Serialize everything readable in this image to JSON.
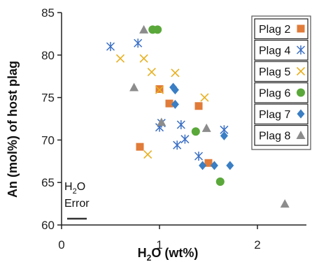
{
  "chart_data": {
    "type": "scatter",
    "title": "",
    "xlabel": "H2O (wt%)",
    "xlabel_main": "H",
    "xlabel_sub": "2",
    "xlabel_rest": "O (wt%)",
    "ylabel": "An (mol%) of host plag",
    "xlim": [
      0,
      2.5
    ],
    "ylim": [
      60,
      85
    ],
    "xticks": [
      0,
      1,
      2
    ],
    "yticks": [
      60,
      65,
      70,
      75,
      80,
      85
    ],
    "legend_position": "top-right",
    "series": [
      {
        "name": "Plag 2",
        "marker": "square",
        "color": "#e07b39",
        "points": [
          [
            0.8,
            69.2
          ],
          [
            1.0,
            76.0
          ],
          [
            1.1,
            74.3
          ],
          [
            1.4,
            74.0
          ],
          [
            1.5,
            67.3
          ]
        ]
      },
      {
        "name": "Plag 4",
        "marker": "star",
        "color": "#3a6fc4",
        "points": [
          [
            0.5,
            81.0
          ],
          [
            0.78,
            81.4
          ],
          [
            1.0,
            71.5
          ],
          [
            1.02,
            72.0
          ],
          [
            1.18,
            69.4
          ],
          [
            1.22,
            71.8
          ],
          [
            1.26,
            70.1
          ],
          [
            1.4,
            68.1
          ],
          [
            1.66,
            71.2
          ]
        ]
      },
      {
        "name": "Plag 5",
        "marker": "x",
        "color": "#e8b020",
        "points": [
          [
            0.6,
            79.6
          ],
          [
            0.84,
            79.6
          ],
          [
            0.88,
            68.3
          ],
          [
            0.92,
            78.0
          ],
          [
            1.0,
            75.9
          ],
          [
            1.16,
            77.9
          ],
          [
            1.46,
            75.0
          ]
        ]
      },
      {
        "name": "Plag 6",
        "marker": "circle",
        "color": "#5aa83a",
        "points": [
          [
            0.93,
            83.0
          ],
          [
            0.98,
            83.0
          ],
          [
            1.37,
            71.0
          ],
          [
            1.62,
            65.1
          ]
        ]
      },
      {
        "name": "Plag 7",
        "marker": "diamond",
        "color": "#3a7ec4",
        "points": [
          [
            1.14,
            76.2
          ],
          [
            1.16,
            75.9
          ],
          [
            1.16,
            74.2
          ],
          [
            1.44,
            67.0
          ],
          [
            1.56,
            67.0
          ],
          [
            1.66,
            70.5
          ],
          [
            1.72,
            67.0
          ]
        ]
      },
      {
        "name": "Plag 8",
        "marker": "triangle",
        "color": "#8c8c8c",
        "points": [
          [
            0.84,
            83.0
          ],
          [
            0.74,
            76.2
          ],
          [
            1.02,
            72.1
          ],
          [
            1.48,
            71.4
          ],
          [
            2.28,
            62.5
          ]
        ]
      }
    ],
    "error_annotation": {
      "label_main": "H",
      "label_sub": "2",
      "label_rest": "O",
      "label_line2": "Error",
      "width": 0.2
    }
  }
}
